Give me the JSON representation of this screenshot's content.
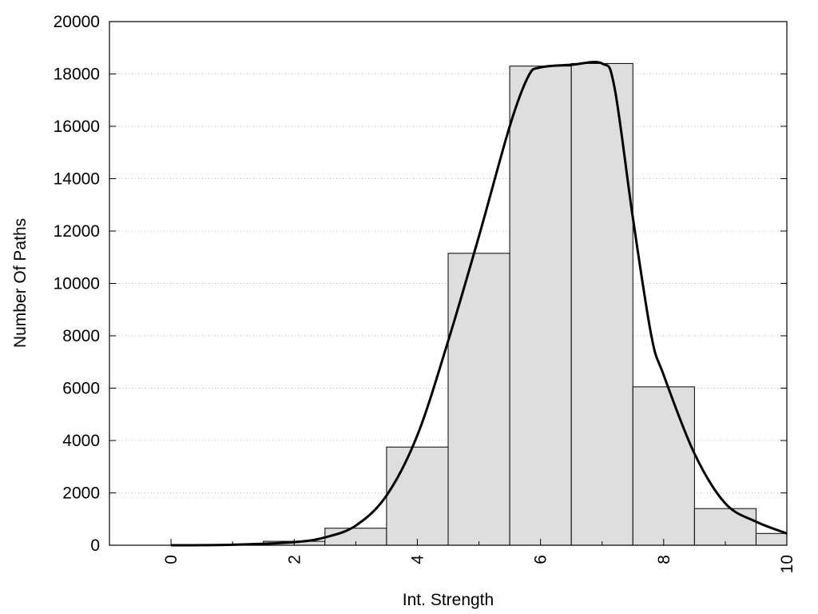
{
  "chart_data": {
    "type": "bar",
    "subtype": "histogram",
    "xlabel": "Int. Strength",
    "ylabel": "Number Of Paths",
    "xlim": [
      -1,
      10
    ],
    "ylim": [
      0,
      20000
    ],
    "x_ticks": [
      0,
      2,
      4,
      6,
      8,
      10
    ],
    "y_ticks": [
      0,
      2000,
      4000,
      6000,
      8000,
      10000,
      12000,
      14000,
      16000,
      18000,
      20000
    ],
    "grid": "horizontal dotted",
    "bar_color": "#dedede",
    "bins": [
      {
        "x": 0,
        "value": 0
      },
      {
        "x": 1,
        "value": 30
      },
      {
        "x": 2,
        "value": 150
      },
      {
        "x": 3,
        "value": 650
      },
      {
        "x": 4,
        "value": 3750
      },
      {
        "x": 5,
        "value": 11150
      },
      {
        "x": 6,
        "value": 18300
      },
      {
        "x": 7,
        "value": 18400
      },
      {
        "x": 8,
        "value": 6050
      },
      {
        "x": 9,
        "value": 1400
      },
      {
        "x": 10,
        "value": 450
      }
    ],
    "curve": {
      "x": [
        0,
        1,
        2,
        2.5,
        3,
        3.5,
        4,
        4.5,
        5,
        5.5,
        5.8,
        6,
        6.5,
        7,
        7.2,
        7.5,
        7.8,
        8,
        8.5,
        9,
        9.5,
        10
      ],
      "y": [
        0,
        20,
        120,
        300,
        750,
        1900,
        4200,
        7800,
        11800,
        16000,
        17900,
        18250,
        18350,
        18400,
        17500,
        12500,
        8000,
        6500,
        3500,
        1600,
        900,
        450
      ]
    }
  }
}
